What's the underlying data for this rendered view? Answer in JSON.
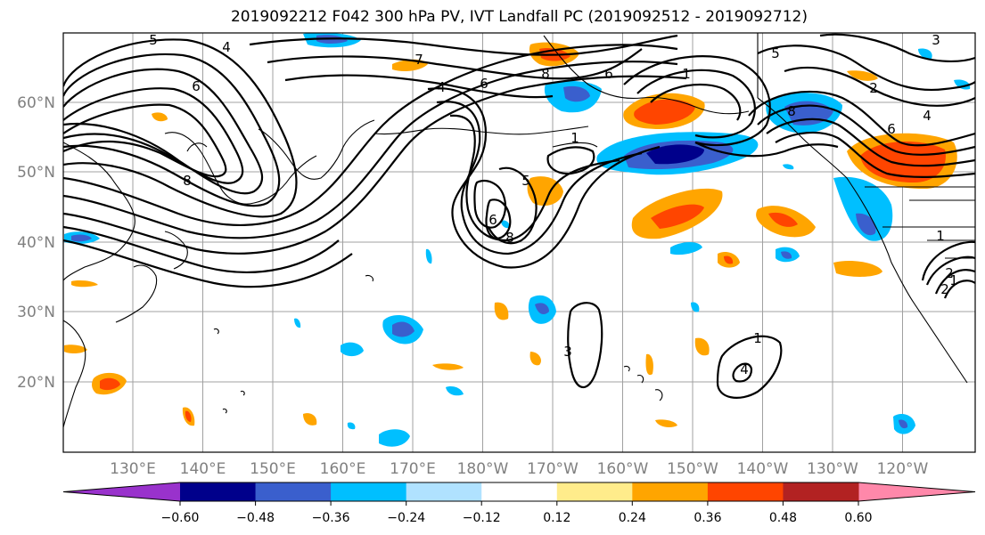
{
  "title": "2019092212 F042 300 hPa PV, IVT Landfall PC (2019092512 - 2019092712)",
  "lat_labels": [
    "60°N",
    "50°N",
    "40°N",
    "30°N",
    "20°N"
  ],
  "lon_labels": [
    "130°E",
    "140°E",
    "150°E",
    "160°E",
    "170°E",
    "180°W",
    "170°W",
    "160°W",
    "150°W",
    "140°W",
    "130°W",
    "120°W"
  ],
  "contour_labels": [
    "5",
    "4",
    "6",
    "8",
    "7",
    "6",
    "4",
    "8",
    "6",
    "1",
    "2",
    "4",
    "3",
    "5",
    "6",
    "1",
    "8",
    "5",
    "6",
    "8",
    "1",
    "2",
    "1",
    "2",
    "3",
    "4",
    "1"
  ],
  "colorbar": {
    "ticks": [
      "−0.60",
      "−0.48",
      "−0.36",
      "−0.24",
      "−0.12",
      "0.12",
      "0.24",
      "0.36",
      "0.48",
      "0.60"
    ],
    "colors": [
      "#9932cc",
      "#00008b",
      "#3a5fcd",
      "#00bfff",
      "#b0e2ff",
      "#ffffff",
      "#ffec8b",
      "#ffa500",
      "#ff4500",
      "#b22222",
      "#ff88aa"
    ]
  }
}
